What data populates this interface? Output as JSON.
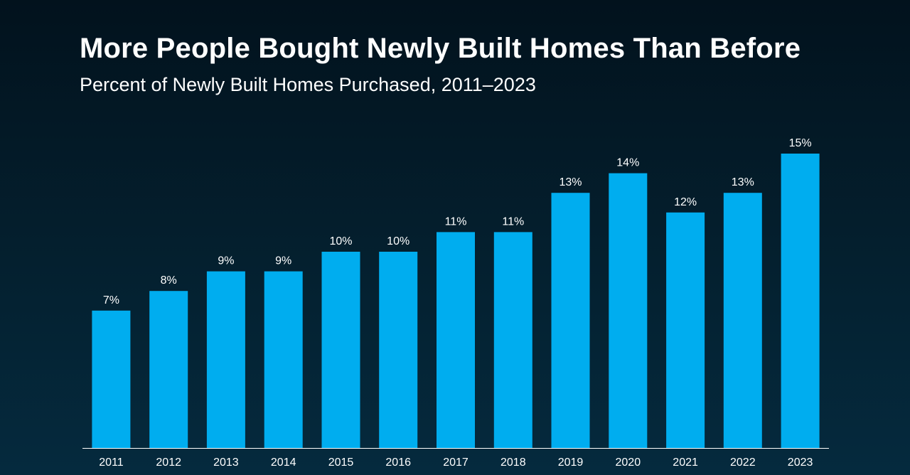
{
  "header": {
    "title": "More People Bought Newly Built Homes Than Before",
    "subtitle": "Percent of Newly Built Homes Purchased, 2011–2023"
  },
  "colors": {
    "bar": "#00adef",
    "axis": "#ffffff",
    "text": "#ffffff"
  },
  "chart_data": {
    "type": "bar",
    "title": "More People Bought Newly Built Homes Than Before",
    "subtitle": "Percent of Newly Built Homes Purchased, 2011–2023",
    "categories": [
      "2011",
      "2012",
      "2013",
      "2014",
      "2015",
      "2016",
      "2017",
      "2018",
      "2019",
      "2020",
      "2021",
      "2022",
      "2023"
    ],
    "values": [
      7,
      8,
      9,
      9,
      10,
      10,
      11,
      11,
      13,
      14,
      12,
      13,
      15
    ],
    "data_labels": [
      "7%",
      "8%",
      "9%",
      "9%",
      "10%",
      "10%",
      "11%",
      "11%",
      "13%",
      "14%",
      "12%",
      "13%",
      "15%"
    ],
    "unit": "%",
    "xlabel": "",
    "ylabel": "",
    "ylim": [
      0,
      15
    ],
    "grid": false,
    "legend": "none"
  }
}
